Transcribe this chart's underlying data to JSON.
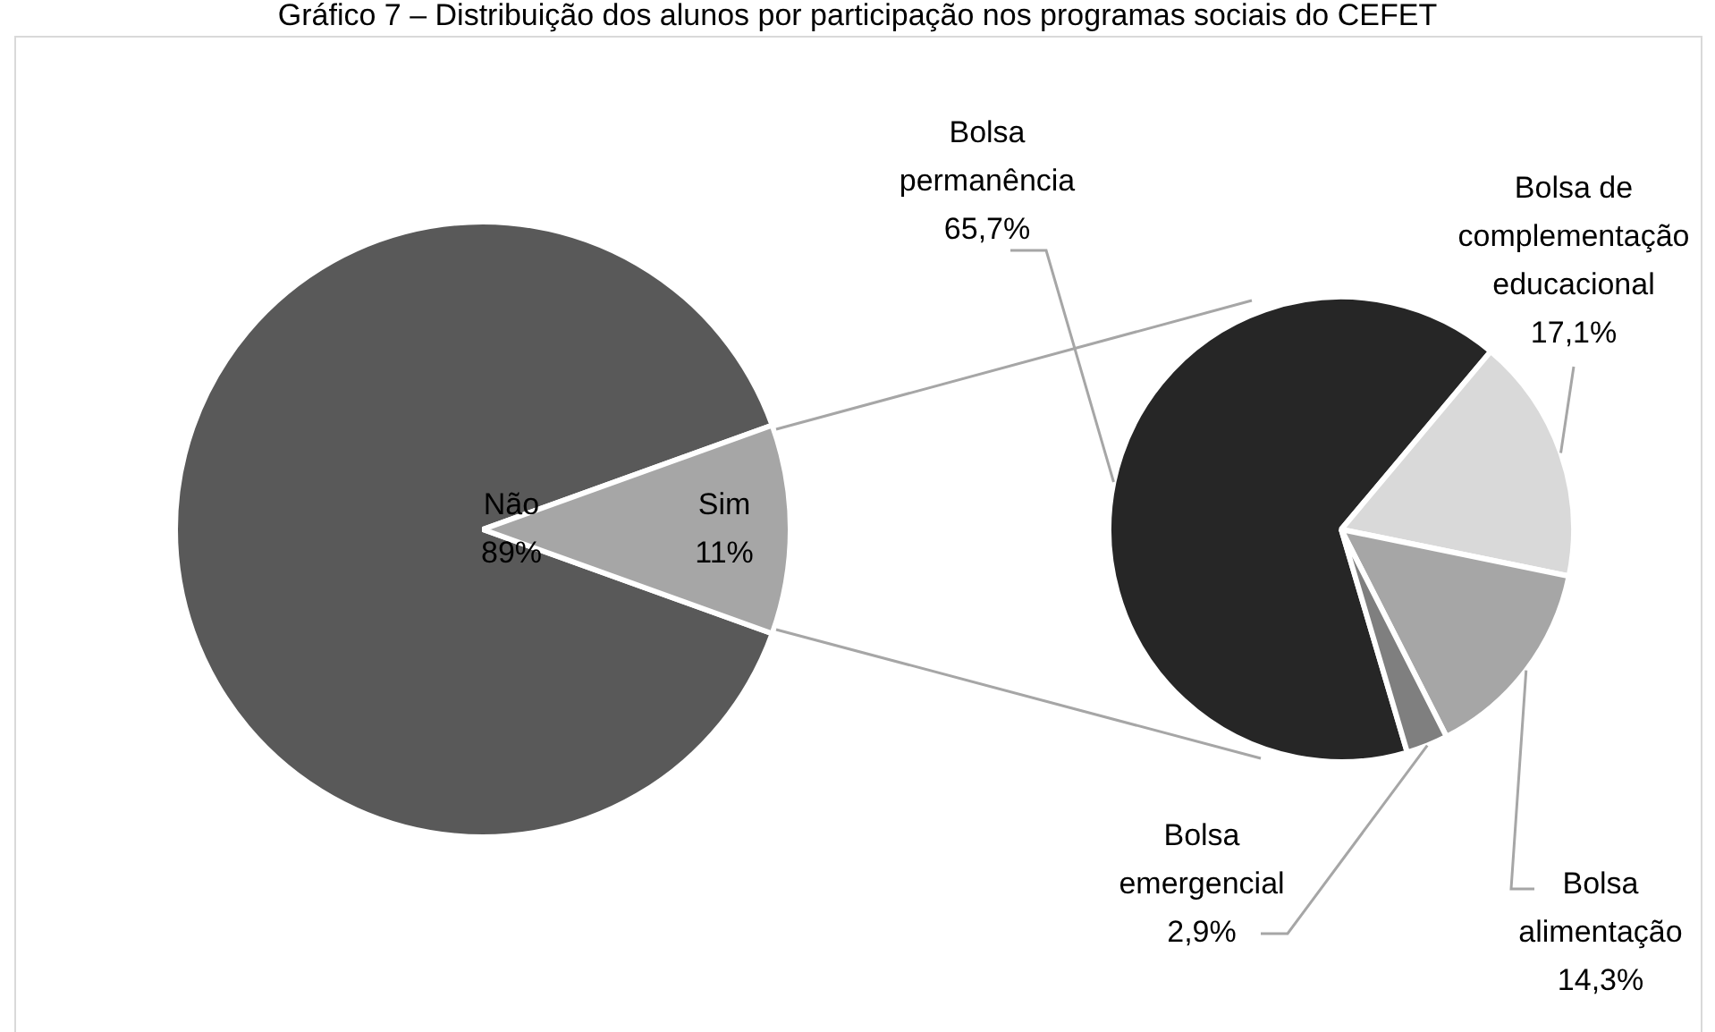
{
  "chart_data": [
    {
      "type": "pie",
      "title": "Gráfico 7 – Distribuição dos alunos por participação nos programas sociais do CEFET",
      "categories": [
        "Não",
        "Sim"
      ],
      "values": [
        89,
        11
      ],
      "colors": [
        "#595959",
        "#a6a6a6"
      ],
      "value_labels": [
        "89%",
        "11%"
      ]
    },
    {
      "type": "pie",
      "categories": [
        "Bolsa permanência",
        "Bolsa de complementação educacional",
        "Bolsa alimentação",
        "Bolsa emergencial"
      ],
      "values": [
        65.7,
        17.1,
        14.3,
        2.9
      ],
      "colors": [
        "#262626",
        "#d9d9d9",
        "#a6a6a6",
        "#7f7f7f"
      ],
      "value_labels": [
        "65,7%",
        "17,1%",
        "14,3%",
        "2,9%"
      ]
    }
  ]
}
